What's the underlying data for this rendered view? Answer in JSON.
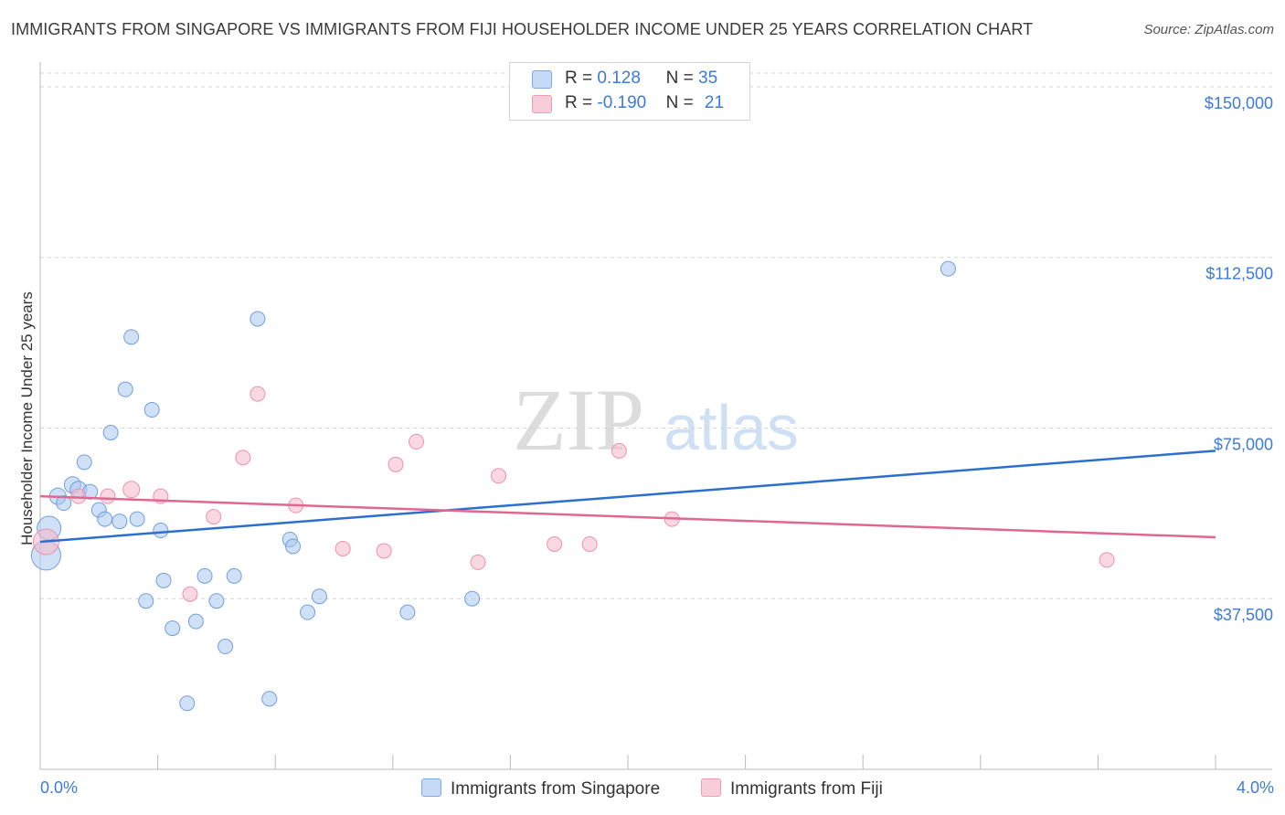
{
  "title": "IMMIGRANTS FROM SINGAPORE VS IMMIGRANTS FROM FIJI HOUSEHOLDER INCOME UNDER 25 YEARS CORRELATION CHART",
  "source": "Source: ZipAtlas.com",
  "watermark": {
    "zip": "ZIP",
    "atlas": "atlas"
  },
  "legend_stats": [
    {
      "r_label": "R = ",
      "r_value": "0.128",
      "n_label": "N = ",
      "n_value": "35",
      "color": "#a9c8f0"
    },
    {
      "r_label": "R = ",
      "r_value": "-0.190",
      "n_label": "N = ",
      "n_value": "21",
      "color": "#f5b8cb"
    }
  ],
  "chart_data": {
    "type": "scatter",
    "title": "IMMIGRANTS FROM SINGAPORE VS IMMIGRANTS FROM FIJI HOUSEHOLDER INCOME UNDER 25 YEARS CORRELATION CHART",
    "xlabel": "",
    "ylabel": "Householder Income Under 25 years",
    "xlim": [
      0.0,
      4.0
    ],
    "ylim": [
      0,
      153000
    ],
    "x_tick_labels": [
      "0.0%",
      "4.0%"
    ],
    "y_ticks": [
      37500,
      75000,
      112500,
      150000
    ],
    "y_tick_labels": [
      "$37,500",
      "$75,000",
      "$112,500",
      "$150,000"
    ],
    "grid": true,
    "series": [
      {
        "name": "Immigrants from Singapore",
        "color": "#a9c8f0",
        "stroke": "#6f9fde",
        "line_color": "#2b6fcf",
        "trend": {
          "x": [
            0.0,
            4.0
          ],
          "y": [
            50000,
            70000
          ]
        },
        "points": [
          {
            "x": 0.02,
            "y": 47000,
            "s": 16
          },
          {
            "x": 0.03,
            "y": 53000,
            "s": 13
          },
          {
            "x": 0.06,
            "y": 60000,
            "s": 9
          },
          {
            "x": 0.08,
            "y": 58500,
            "s": 8
          },
          {
            "x": 0.11,
            "y": 62500,
            "s": 9
          },
          {
            "x": 0.13,
            "y": 61500,
            "s": 9
          },
          {
            "x": 0.15,
            "y": 67500,
            "s": 8
          },
          {
            "x": 0.17,
            "y": 61000,
            "s": 8
          },
          {
            "x": 0.2,
            "y": 57000,
            "s": 8
          },
          {
            "x": 0.22,
            "y": 55000,
            "s": 8
          },
          {
            "x": 0.24,
            "y": 74000,
            "s": 8
          },
          {
            "x": 0.27,
            "y": 54500,
            "s": 8
          },
          {
            "x": 0.29,
            "y": 83500,
            "s": 8
          },
          {
            "x": 0.31,
            "y": 95000,
            "s": 8
          },
          {
            "x": 0.33,
            "y": 55000,
            "s": 8
          },
          {
            "x": 0.36,
            "y": 37000,
            "s": 8
          },
          {
            "x": 0.38,
            "y": 79000,
            "s": 8
          },
          {
            "x": 0.41,
            "y": 52500,
            "s": 8
          },
          {
            "x": 0.42,
            "y": 41500,
            "s": 8
          },
          {
            "x": 0.45,
            "y": 31000,
            "s": 8
          },
          {
            "x": 0.5,
            "y": 14500,
            "s": 8
          },
          {
            "x": 0.53,
            "y": 32500,
            "s": 8
          },
          {
            "x": 0.56,
            "y": 42500,
            "s": 8
          },
          {
            "x": 0.6,
            "y": 37000,
            "s": 8
          },
          {
            "x": 0.63,
            "y": 27000,
            "s": 8
          },
          {
            "x": 0.66,
            "y": 42500,
            "s": 8
          },
          {
            "x": 0.74,
            "y": 99000,
            "s": 8
          },
          {
            "x": 0.78,
            "y": 15500,
            "s": 8
          },
          {
            "x": 0.85,
            "y": 50500,
            "s": 8
          },
          {
            "x": 0.86,
            "y": 49000,
            "s": 8
          },
          {
            "x": 0.91,
            "y": 34500,
            "s": 8
          },
          {
            "x": 0.95,
            "y": 38000,
            "s": 8
          },
          {
            "x": 1.25,
            "y": 34500,
            "s": 8
          },
          {
            "x": 1.47,
            "y": 37500,
            "s": 8
          },
          {
            "x": 3.09,
            "y": 110000,
            "s": 8
          }
        ]
      },
      {
        "name": "Immigrants from Fiji",
        "color": "#f5b8cb",
        "stroke": "#ea91ae",
        "line_color": "#e06890",
        "trend": {
          "x": [
            0.0,
            4.0
          ],
          "y": [
            60000,
            51000
          ]
        },
        "points": [
          {
            "x": 0.02,
            "y": 50000,
            "s": 14
          },
          {
            "x": 0.13,
            "y": 60000,
            "s": 8
          },
          {
            "x": 0.23,
            "y": 60000,
            "s": 8
          },
          {
            "x": 0.31,
            "y": 61500,
            "s": 9
          },
          {
            "x": 0.41,
            "y": 60000,
            "s": 8
          },
          {
            "x": 0.51,
            "y": 38500,
            "s": 8
          },
          {
            "x": 0.59,
            "y": 55500,
            "s": 8
          },
          {
            "x": 0.69,
            "y": 68500,
            "s": 8
          },
          {
            "x": 0.74,
            "y": 82500,
            "s": 8
          },
          {
            "x": 0.87,
            "y": 58000,
            "s": 8
          },
          {
            "x": 1.03,
            "y": 48500,
            "s": 8
          },
          {
            "x": 1.17,
            "y": 48000,
            "s": 8
          },
          {
            "x": 1.21,
            "y": 67000,
            "s": 8
          },
          {
            "x": 1.28,
            "y": 72000,
            "s": 8
          },
          {
            "x": 1.49,
            "y": 45500,
            "s": 8
          },
          {
            "x": 1.56,
            "y": 64500,
            "s": 8
          },
          {
            "x": 1.75,
            "y": 49500,
            "s": 8
          },
          {
            "x": 1.87,
            "y": 49500,
            "s": 8
          },
          {
            "x": 1.97,
            "y": 70000,
            "s": 8
          },
          {
            "x": 2.15,
            "y": 55000,
            "s": 8
          },
          {
            "x": 3.63,
            "y": 46000,
            "s": 8
          }
        ]
      }
    ]
  }
}
